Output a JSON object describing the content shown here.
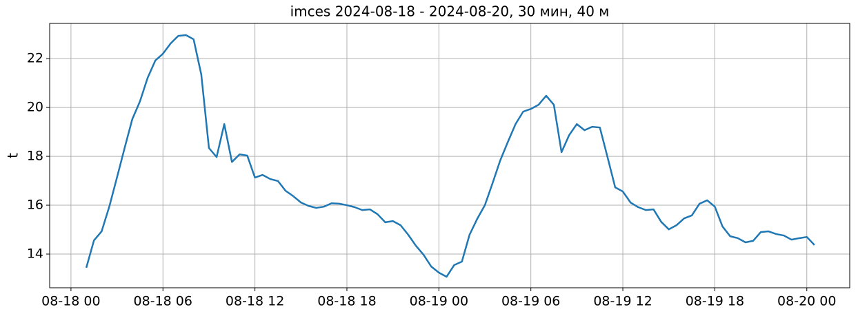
{
  "chart_data": {
    "type": "line",
    "title": "imces 2024-08-18 - 2024-08-20, 30 мин, 40 м",
    "y_label": "t",
    "x": [
      1,
      1.5,
      2,
      2.5,
      3,
      3.5,
      4,
      4.5,
      5,
      5.5,
      6,
      6.5,
      7,
      7.5,
      8,
      8.5,
      9,
      9.5,
      10,
      10.5,
      11,
      11.5,
      12,
      12.5,
      13,
      13.5,
      14,
      14.5,
      15,
      15.5,
      16,
      16.5,
      17,
      17.5,
      18,
      18.5,
      19,
      19.5,
      20,
      20.5,
      21,
      21.5,
      22,
      22.5,
      23,
      23.5,
      24,
      24.5,
      25,
      25.5,
      26,
      26.5,
      27,
      27.5,
      28,
      28.5,
      29,
      29.5,
      30,
      30.5,
      31,
      31.5,
      32,
      32.5,
      33,
      33.5,
      34,
      34.5,
      35,
      35.5,
      36,
      36.5,
      37,
      37.5,
      38,
      38.5,
      39,
      39.5,
      40,
      40.5,
      41,
      41.5,
      42,
      42.5,
      43,
      43.5,
      44,
      44.5,
      45,
      45.5,
      46,
      46.5,
      47,
      47.5,
      48,
      48.5
    ],
    "series": [
      {
        "color": "#1f77b4",
        "values": [
          13.44,
          14.56,
          14.93,
          15.94,
          17.13,
          18.34,
          19.52,
          20.25,
          21.21,
          21.92,
          22.2,
          22.62,
          22.93,
          22.96,
          22.79,
          21.35,
          18.34,
          17.97,
          19.32,
          17.77,
          18.08,
          18.03,
          17.13,
          17.24,
          17.07,
          16.99,
          16.59,
          16.37,
          16.11,
          15.97,
          15.89,
          15.94,
          16.08,
          16.06,
          16.0,
          15.92,
          15.8,
          15.83,
          15.63,
          15.3,
          15.35,
          15.18,
          14.79,
          14.34,
          13.97,
          13.49,
          13.24,
          13.07,
          13.55,
          13.69,
          14.79,
          15.44,
          16.0,
          16.9,
          17.83,
          18.59,
          19.32,
          19.83,
          19.94,
          20.11,
          20.48,
          20.11,
          18.17,
          18.87,
          19.32,
          19.07,
          19.21,
          19.18,
          17.97,
          16.73,
          16.56,
          16.11,
          15.92,
          15.8,
          15.83,
          15.32,
          15.01,
          15.18,
          15.46,
          15.58,
          16.06,
          16.2,
          15.94,
          15.13,
          14.73,
          14.65,
          14.48,
          14.54,
          14.9,
          14.93,
          14.82,
          14.76,
          14.59,
          14.65,
          14.7,
          14.37
        ]
      }
    ],
    "xlim": [
      -1.39,
      50.8
    ],
    "ylim": [
      12.62,
      23.44
    ],
    "xticks": [
      {
        "value": 0,
        "label": "08-18 00"
      },
      {
        "value": 6,
        "label": "08-18 06"
      },
      {
        "value": 12,
        "label": "08-18 12"
      },
      {
        "value": 18,
        "label": "08-18 18"
      },
      {
        "value": 24,
        "label": "08-19 00"
      },
      {
        "value": 30,
        "label": "08-19 06"
      },
      {
        "value": 36,
        "label": "08-19 12"
      },
      {
        "value": 42,
        "label": "08-19 18"
      },
      {
        "value": 48,
        "label": "08-20 00"
      }
    ],
    "yticks": [
      14,
      16,
      18,
      20,
      22
    ],
    "grid": true
  }
}
